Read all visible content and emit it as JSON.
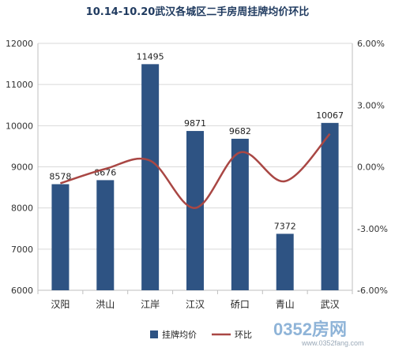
{
  "chart_data": {
    "type": "bar",
    "title": "10.14-10.20武汉各城区二手房周挂牌均价环比",
    "categories": [
      "汉阳",
      "洪山",
      "江岸",
      "江汉",
      "硚口",
      "青山",
      "武汉"
    ],
    "series": [
      {
        "name": "挂牌均价",
        "type": "bar",
        "axis": "left",
        "values": [
          8578,
          8676,
          11495,
          9871,
          9682,
          7372,
          10067
        ]
      },
      {
        "name": "环比",
        "type": "line",
        "axis": "right",
        "values": [
          -0.8,
          -0.1,
          0.3,
          -2.0,
          0.7,
          -0.7,
          1.6
        ]
      }
    ],
    "y_left": {
      "min": 6000,
      "max": 12000,
      "ticks": [
        6000,
        7000,
        8000,
        9000,
        10000,
        11000,
        12000
      ]
    },
    "y_right": {
      "min": -6.0,
      "max": 6.0,
      "ticks": [
        -6.0,
        -3.0,
        0.0,
        3.0,
        6.0
      ],
      "tick_labels": [
        "-6.00%",
        "-3.00%",
        "0.00%",
        "3.00%",
        "6.00%"
      ]
    },
    "data_labels": [
      "8578",
      "8676",
      "11495",
      "9871",
      "9682",
      "7372",
      "10067"
    ],
    "legend": {
      "position": "bottom",
      "entries": [
        "挂牌均价",
        "环比"
      ]
    },
    "grid": true,
    "colors": {
      "bar": "#2e5383",
      "line": "#a94744",
      "title": "#1f3a5f"
    }
  },
  "watermark": {
    "text": "0352房网",
    "url": "www.0352fang.com"
  }
}
